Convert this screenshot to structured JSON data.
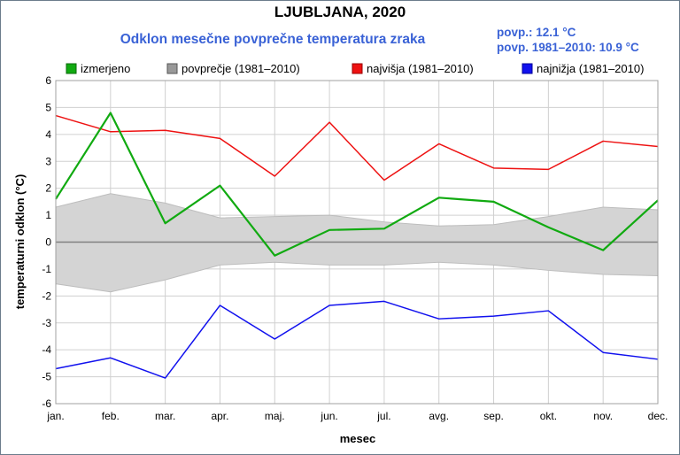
{
  "title": "LJUBLJANA, 2020",
  "subtitle": "Odklon mesečne povprečne temperatura zraka",
  "stats": {
    "avg": "povp.: 12.1 °C",
    "avg_ref": "povp. 1981–2010: 10.9 °C"
  },
  "colors": {
    "measured": "#11aa11",
    "band": "#d4d4d4",
    "max": "#ee1111",
    "min": "#1111ee",
    "grid": "#d0d0d0",
    "zero": "#808080"
  },
  "chart_data": {
    "type": "line",
    "xlabel": "mesec",
    "ylabel": "temperaturni odklon (°C)",
    "ylim": [
      -6,
      6
    ],
    "yticks": [
      6,
      5,
      4,
      3,
      2,
      1,
      0,
      -1,
      -2,
      -3,
      -4,
      -5,
      -6
    ],
    "categories": [
      "jan.",
      "feb.",
      "mar.",
      "apr.",
      "maj.",
      "jun.",
      "jul.",
      "avg.",
      "sep.",
      "okt.",
      "nov.",
      "dec."
    ],
    "legend_position": "top",
    "grid": true,
    "legend": [
      "izmerjeno",
      "povprečje (1981–2010)",
      "najvišja (1981–2010)",
      "najnižja (1981–2010)"
    ],
    "series": [
      {
        "name": "izmerjeno",
        "values": [
          1.6,
          4.8,
          0.7,
          2.1,
          -0.5,
          0.45,
          0.5,
          1.65,
          1.5,
          0.55,
          -0.3,
          1.55
        ]
      },
      {
        "name": "najvišja (1981–2010)",
        "values": [
          4.7,
          4.1,
          4.15,
          3.85,
          2.45,
          4.45,
          2.3,
          3.65,
          2.75,
          2.7,
          3.75,
          3.55
        ]
      },
      {
        "name": "najnižja (1981–2010)",
        "values": [
          -4.7,
          -4.3,
          -5.05,
          -2.35,
          -3.6,
          -2.35,
          -2.2,
          -2.85,
          -2.75,
          -2.55,
          -4.1,
          -4.35
        ]
      }
    ],
    "band": {
      "name": "povprečje (1981–2010)",
      "upper": [
        1.3,
        1.8,
        1.45,
        0.9,
        0.95,
        1.0,
        0.75,
        0.6,
        0.65,
        0.95,
        1.3,
        1.2
      ],
      "lower": [
        -1.55,
        -1.85,
        -1.4,
        -0.85,
        -0.75,
        -0.85,
        -0.85,
        -0.75,
        -0.85,
        -1.05,
        -1.2,
        -1.25
      ]
    }
  }
}
